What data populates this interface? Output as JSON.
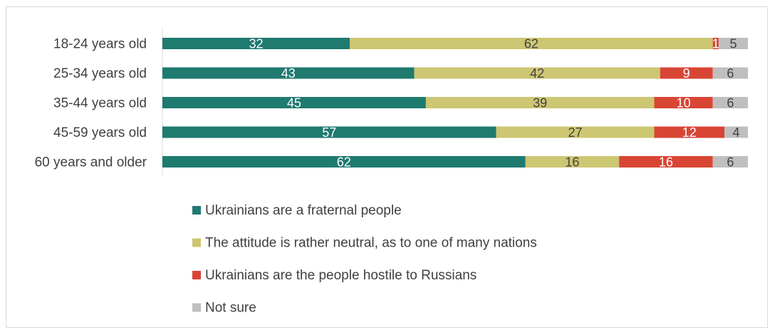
{
  "chart_data": {
    "type": "bar",
    "orientation": "horizontal",
    "stacked": true,
    "categories": [
      "18-24 years old",
      "25-34 years old",
      "35-44 years old",
      "45-59 years old",
      "60 years and older"
    ],
    "series": [
      {
        "name": "Ukrainians are a fraternal people",
        "values": [
          32,
          43,
          45,
          57,
          62
        ],
        "color": "#1f7a70",
        "label_color": "#ffffff"
      },
      {
        "name": "The attitude is rather neutral, as to one of many nations",
        "values": [
          62,
          42,
          39,
          27,
          16
        ],
        "color": "#cdc672",
        "label_color": "#404040"
      },
      {
        "name": "Ukrainians are the people hostile to Russians",
        "values": [
          1,
          9,
          10,
          12,
          16
        ],
        "color": "#d94535",
        "label_color": "#ffffff"
      },
      {
        "name": "Not sure",
        "values": [
          5,
          6,
          6,
          4,
          6
        ],
        "color": "#bfbfbf",
        "label_color": "#404040"
      }
    ],
    "xlim": [
      0,
      100
    ],
    "grid": false,
    "legend_position": "bottom"
  }
}
